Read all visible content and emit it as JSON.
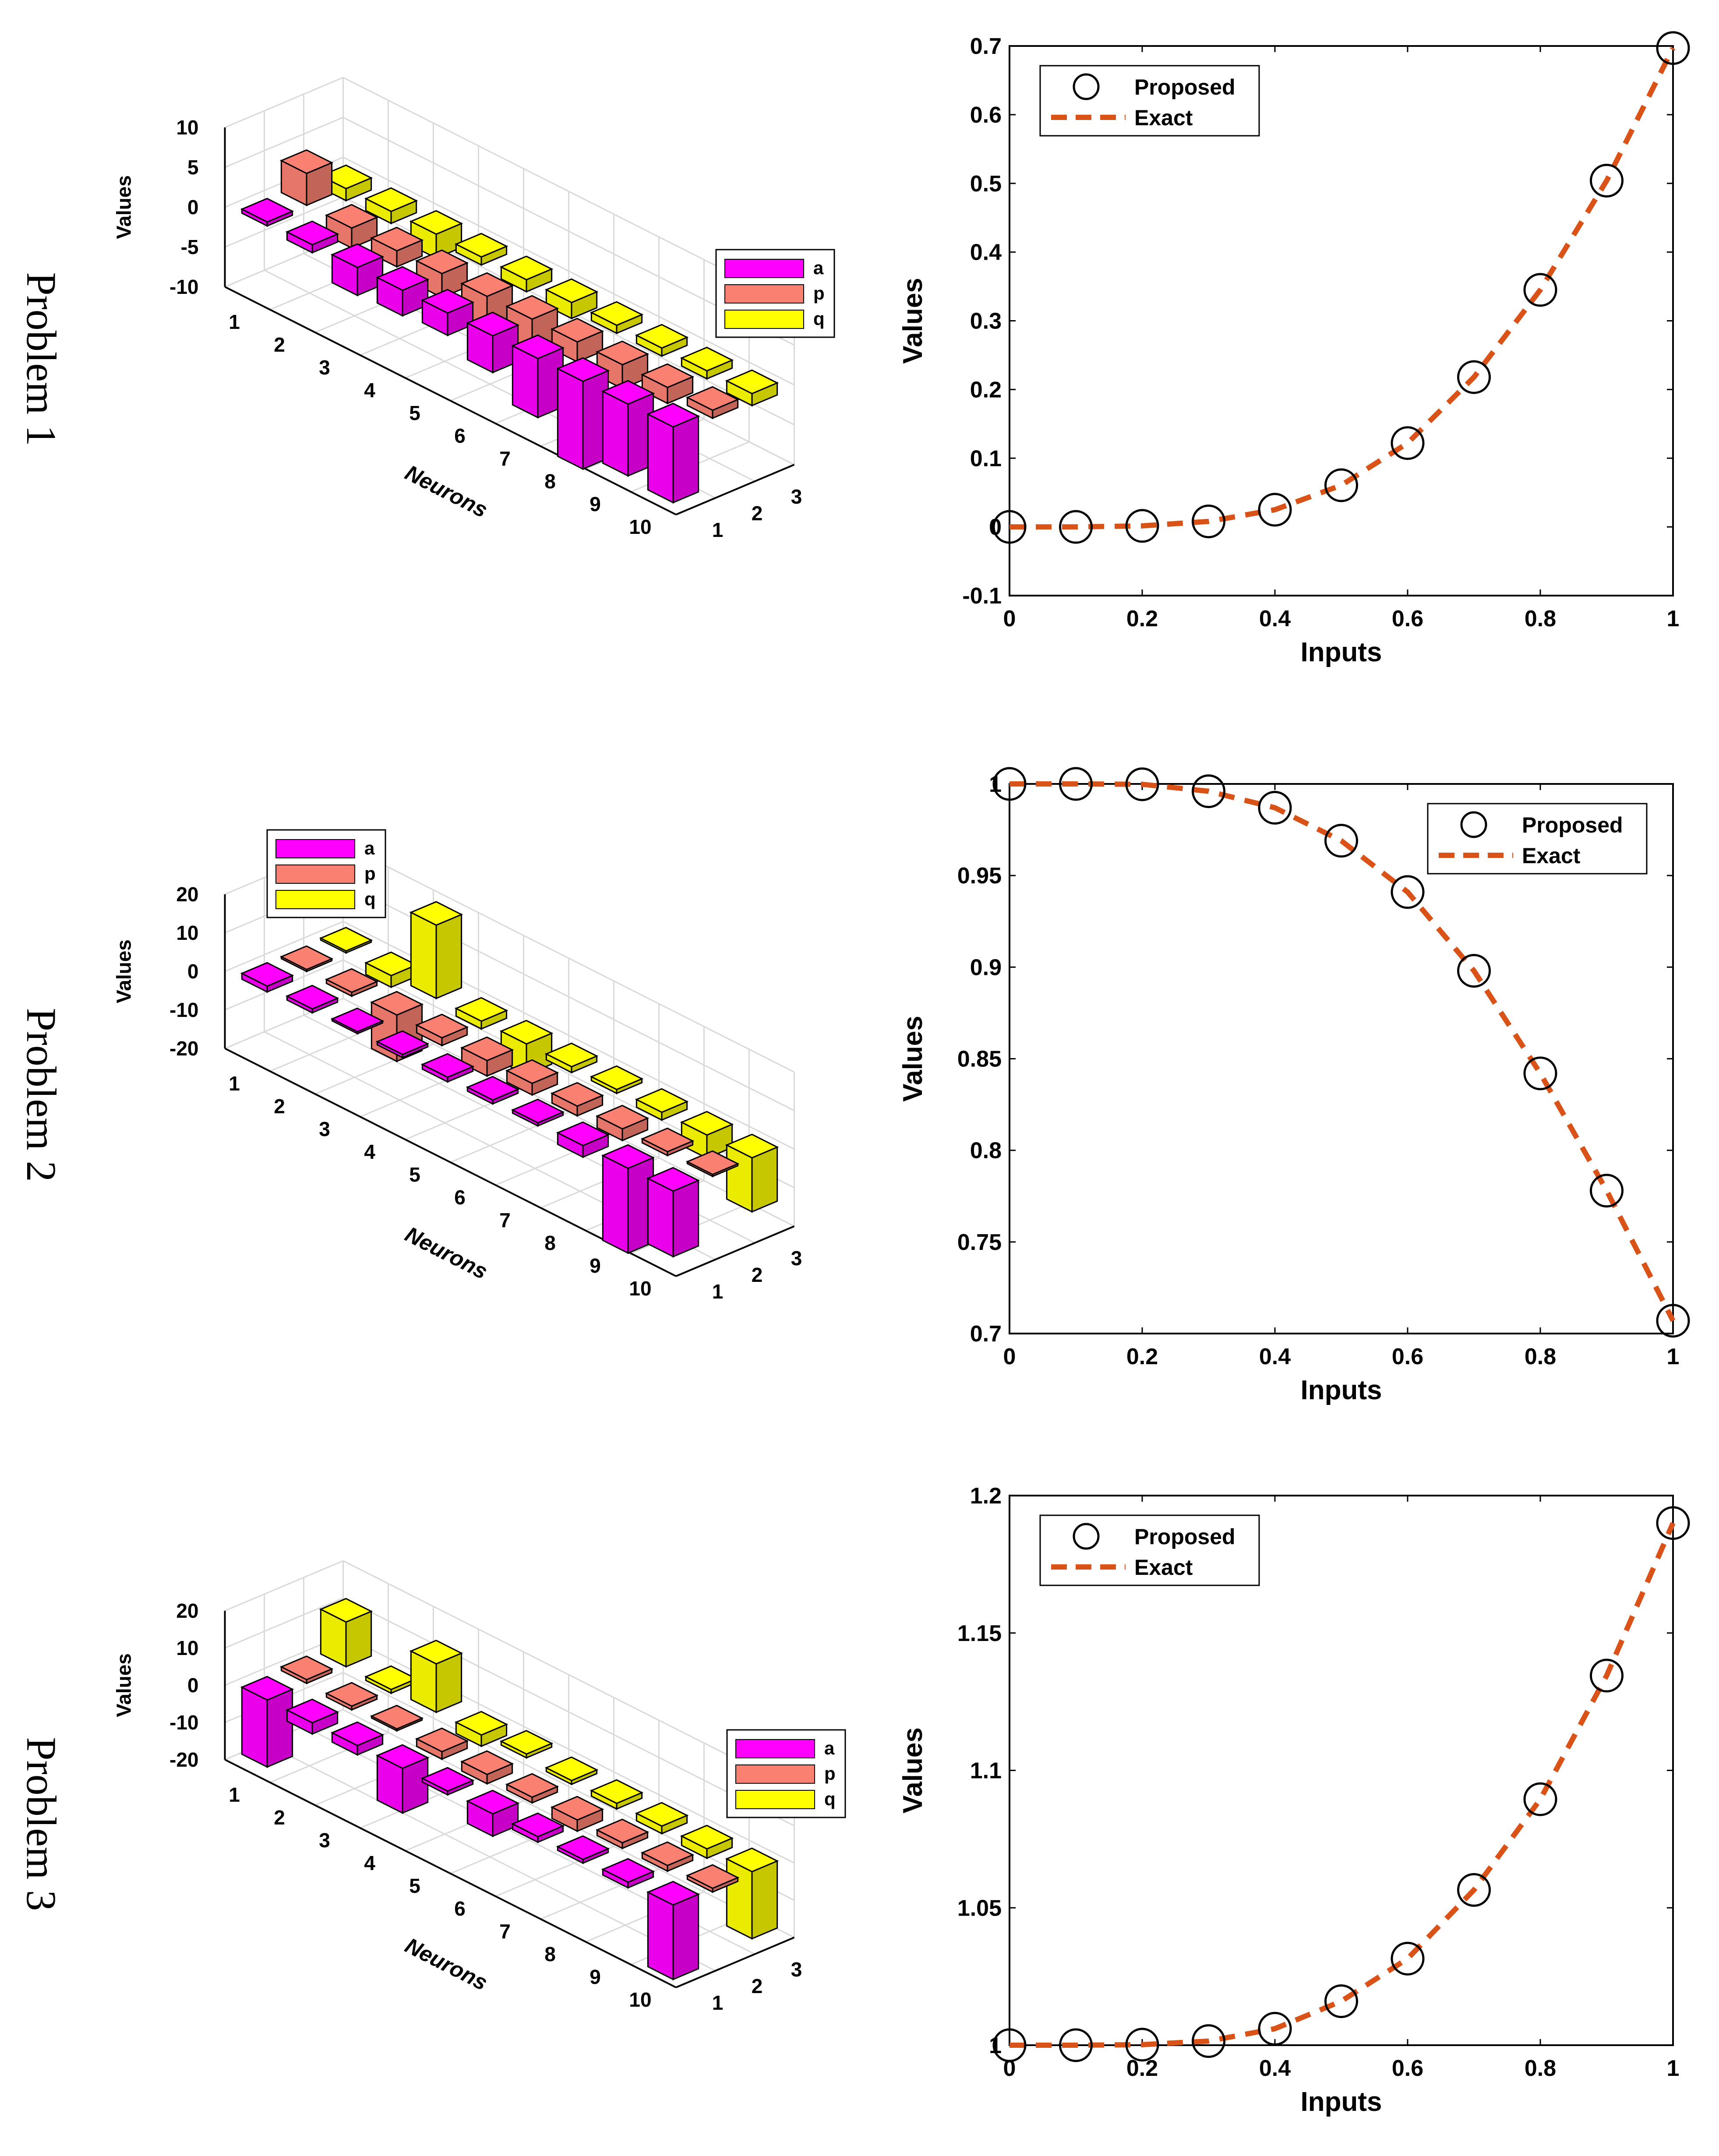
{
  "rows": [
    {
      "label": "Problem 1"
    },
    {
      "label": "Problem 2"
    },
    {
      "label": "Problem 3"
    }
  ],
  "colors": {
    "a": "#ff00ff",
    "p": "#fa8072",
    "q": "#ffff00",
    "exact": "#d95319",
    "proposed": "#000000",
    "axes": "#000000",
    "grid": "#d9d9d9"
  },
  "chart_data": [
    {
      "type": "bar3d",
      "panel": "Problem 1 weights",
      "zlabel": "Values",
      "xlabel": "Neurons",
      "neurons": [
        1,
        2,
        3,
        4,
        5,
        6,
        7,
        8,
        9,
        10
      ],
      "zlim": [
        -10,
        10
      ],
      "zticks": [
        "10",
        "5",
        "0",
        "-5",
        "-10"
      ],
      "ytick_labels": [
        "1",
        "2",
        "3"
      ],
      "legend": [
        "a",
        "p",
        "q"
      ],
      "legend_position": "upper-right",
      "series": [
        {
          "name": "a",
          "values": [
            -0.5,
            -1.0,
            -3.5,
            -3.2,
            -2.8,
            -4.6,
            -7.4,
            -11.0,
            -9.0,
            -9.5
          ]
        },
        {
          "name": "p",
          "values": [
            4.0,
            -2.5,
            -2.0,
            -3.0,
            -4.5,
            -4.0,
            -2.5,
            -3.0,
            -2.0,
            -1.0
          ]
        },
        {
          "name": "q",
          "values": [
            -1.5,
            -1.5,
            -3.0,
            -1.0,
            -1.5,
            -2.0,
            -1.0,
            -1.0,
            -1.0,
            -1.5
          ]
        }
      ]
    },
    {
      "type": "line",
      "panel": "Problem 1 solution",
      "xlabel": "Inputs",
      "ylabel": "Values",
      "xlim": [
        0,
        1
      ],
      "ylim": [
        -0.1,
        0.7
      ],
      "xticks": [
        "0",
        "0.2",
        "0.4",
        "0.6",
        "0.8",
        "1"
      ],
      "yticks": [
        "-0.1",
        "0",
        "0.1",
        "0.2",
        "0.3",
        "0.4",
        "0.5",
        "0.6",
        "0.7"
      ],
      "legend": [
        "Proposed",
        "Exact"
      ],
      "legend_position": "top-left",
      "x": [
        0,
        0.1,
        0.2,
        0.3,
        0.4,
        0.5,
        0.6,
        0.7,
        0.8,
        0.9,
        1
      ],
      "series": [
        {
          "name": "Proposed",
          "values": [
            0,
            0,
            0.0015,
            0.008,
            0.025,
            0.0606,
            0.122,
            0.218,
            0.345,
            0.504,
            0.697
          ]
        },
        {
          "name": "Exact",
          "values": [
            0,
            0,
            0.0015,
            0.008,
            0.025,
            0.0606,
            0.122,
            0.218,
            0.345,
            0.504,
            0.697
          ]
        }
      ]
    },
    {
      "type": "bar3d",
      "panel": "Problem 2 weights",
      "zlabel": "Values",
      "xlabel": "Neurons",
      "neurons": [
        1,
        2,
        3,
        4,
        5,
        6,
        7,
        8,
        9,
        10
      ],
      "zlim": [
        -20,
        20
      ],
      "zticks": [
        "20",
        "10",
        "0",
        "-10",
        "-20"
      ],
      "ytick_labels": [
        "1",
        "2",
        "3"
      ],
      "legend": [
        "a",
        "p",
        "q"
      ],
      "legend_position": "upper-left",
      "series": [
        {
          "name": "a",
          "values": [
            -1.5,
            -1.0,
            -0.5,
            -0.8,
            -1.2,
            -1.0,
            -0.8,
            -3.0,
            -22.0,
            -17.0
          ]
        },
        {
          "name": "p",
          "values": [
            -0.5,
            -1.0,
            -12.0,
            -2.0,
            -4.0,
            -3.0,
            -2.5,
            -3.0,
            -1.0,
            -0.5
          ]
        },
        {
          "name": "q",
          "values": [
            0.5,
            -3.0,
            19.0,
            -2.0,
            -8.0,
            -1.5,
            -1.0,
            -2.0,
            -6.0,
            -14.0
          ]
        }
      ]
    },
    {
      "type": "line",
      "panel": "Problem 2 solution",
      "xlabel": "Inputs",
      "ylabel": "Values",
      "xlim": [
        0,
        1
      ],
      "ylim": [
        0.7,
        1.0
      ],
      "xticks": [
        "0",
        "0.2",
        "0.4",
        "0.6",
        "0.8",
        "1"
      ],
      "yticks": [
        "0.7",
        "0.75",
        "0.8",
        "0.85",
        "0.9",
        "0.95",
        "1"
      ],
      "legend": [
        "Proposed",
        "Exact"
      ],
      "legend_position": "top-right",
      "x": [
        0,
        0.1,
        0.2,
        0.3,
        0.4,
        0.5,
        0.6,
        0.7,
        0.8,
        0.9,
        1
      ],
      "series": [
        {
          "name": "Proposed",
          "values": [
            1.0,
            1.0,
            0.9998,
            0.996,
            0.987,
            0.969,
            0.941,
            0.898,
            0.842,
            0.778,
            0.707
          ]
        },
        {
          "name": "Exact",
          "values": [
            1.0,
            1.0,
            0.9998,
            0.996,
            0.987,
            0.969,
            0.941,
            0.898,
            0.842,
            0.778,
            0.707
          ]
        }
      ]
    },
    {
      "type": "bar3d",
      "panel": "Problem 3 weights",
      "zlabel": "Values",
      "xlabel": "Neurons",
      "neurons": [
        1,
        2,
        3,
        4,
        5,
        6,
        7,
        8,
        9,
        10
      ],
      "zlim": [
        -20,
        20
      ],
      "zticks": [
        "20",
        "10",
        "0",
        "-10",
        "-20"
      ],
      "ytick_labels": [
        "1",
        "2",
        "3"
      ],
      "legend": [
        "a",
        "p",
        "q"
      ],
      "legend_position": "right",
      "series": [
        {
          "name": "a",
          "values": [
            -18.0,
            -3.0,
            -2.5,
            -12.0,
            -1.0,
            -6.0,
            -1.5,
            -1.0,
            -1.5,
            -20.0
          ]
        },
        {
          "name": "p",
          "values": [
            1.0,
            -1.0,
            -0.5,
            -2.0,
            -2.5,
            -1.5,
            -3.0,
            -1.5,
            -1.5,
            -1.0
          ]
        },
        {
          "name": "q",
          "values": [
            12.0,
            -1.0,
            13.0,
            -3.0,
            1.0,
            -1.0,
            -1.5,
            -2.0,
            -2.5,
            -18.0
          ]
        }
      ]
    },
    {
      "type": "line",
      "panel": "Problem 3 solution",
      "xlabel": "Inputs",
      "ylabel": "Values",
      "xlim": [
        0,
        1
      ],
      "ylim": [
        1.0,
        1.2
      ],
      "xticks": [
        "0",
        "0.2",
        "0.4",
        "0.6",
        "0.8",
        "1"
      ],
      "yticks": [
        "1",
        "1.05",
        "1.1",
        "1.15",
        "1.2"
      ],
      "legend": [
        "Proposed",
        "Exact"
      ],
      "legend_position": "top-left",
      "x": [
        0,
        0.1,
        0.2,
        0.3,
        0.4,
        0.5,
        0.6,
        0.7,
        0.8,
        0.9,
        1
      ],
      "series": [
        {
          "name": "Proposed",
          "values": [
            1.0,
            1.0,
            1.0002,
            1.0015,
            1.006,
            1.016,
            1.0315,
            1.0565,
            1.0895,
            1.1345,
            1.19
          ]
        },
        {
          "name": "Exact",
          "values": [
            1.0,
            1.0,
            1.0002,
            1.0015,
            1.006,
            1.016,
            1.0315,
            1.0565,
            1.0895,
            1.1345,
            1.19
          ]
        }
      ]
    }
  ]
}
